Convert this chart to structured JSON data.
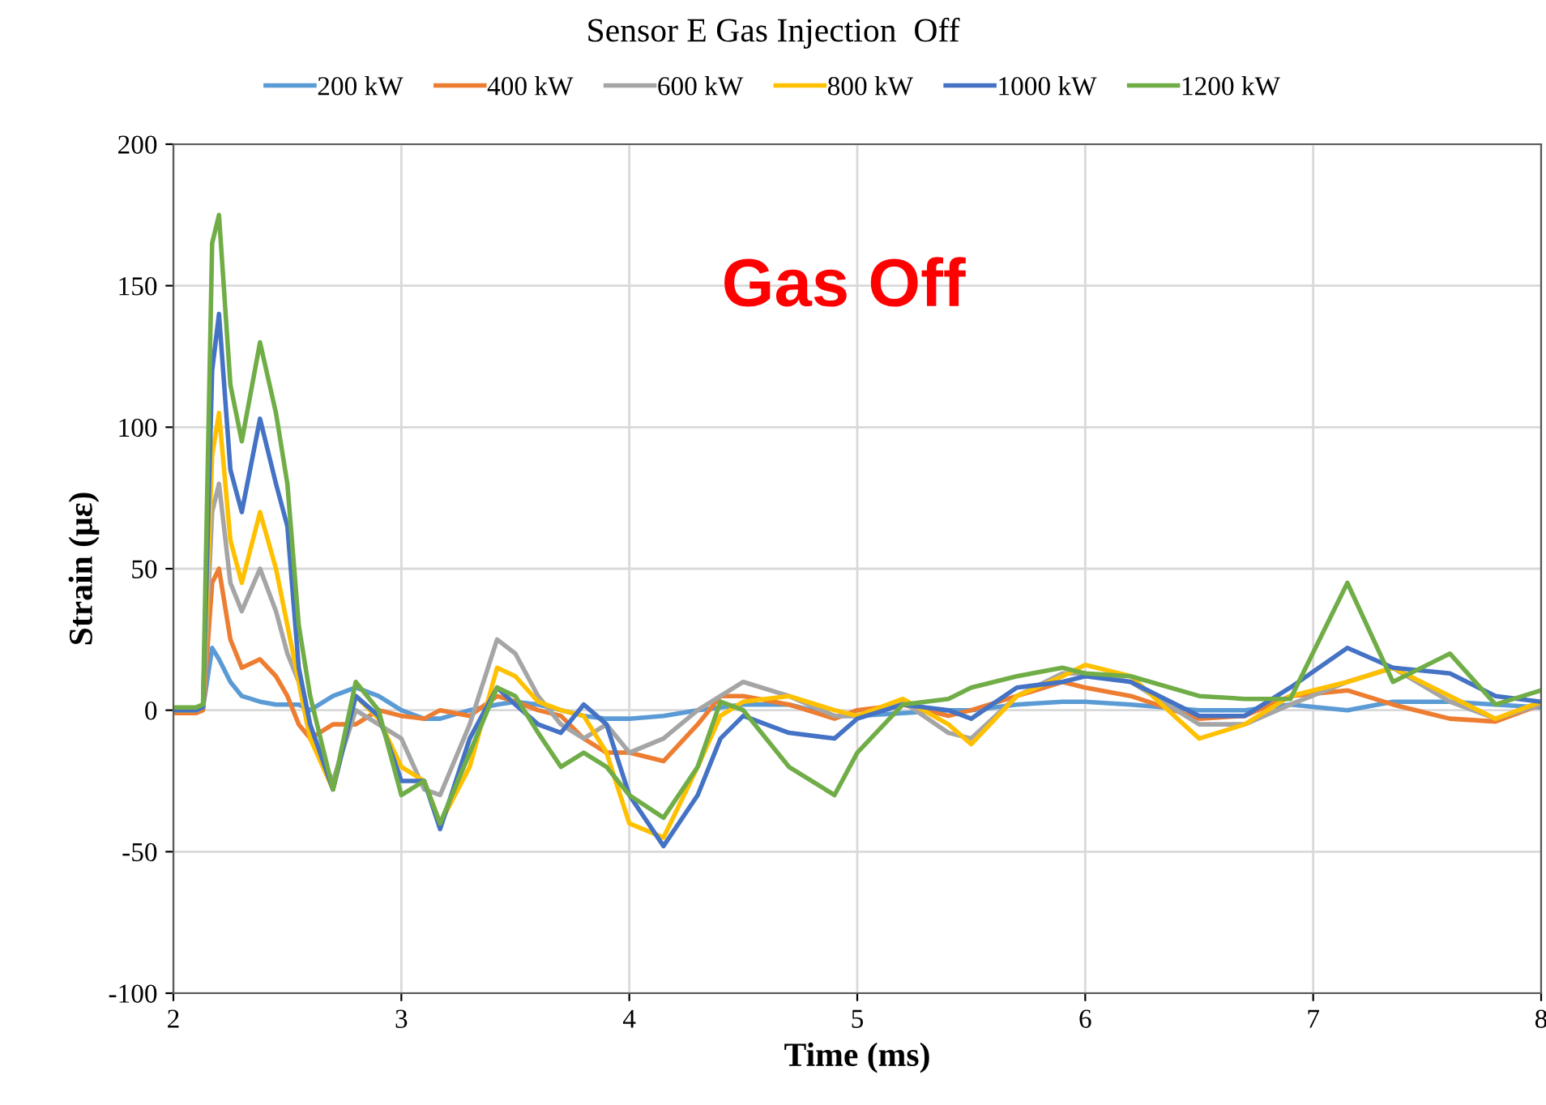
{
  "chart_data": {
    "type": "line",
    "title": "Sensor E Gas Injection  Off",
    "xlabel": "Time (ms)",
    "ylabel": "Strain (με)",
    "annotations": [
      "Gas Off"
    ],
    "x": [
      2.0,
      2.1,
      2.13,
      2.17,
      2.2,
      2.25,
      2.3,
      2.38,
      2.45,
      2.5,
      2.55,
      2.6,
      2.7,
      2.8,
      2.9,
      3.0,
      3.1,
      3.17,
      3.3,
      3.42,
      3.5,
      3.6,
      3.7,
      3.8,
      3.9,
      4.0,
      4.15,
      4.3,
      4.4,
      4.5,
      4.7,
      4.9,
      5.0,
      5.2,
      5.4,
      5.5,
      5.7,
      5.9,
      6.0,
      6.2,
      6.5,
      6.7,
      6.9,
      7.15,
      7.35,
      7.6,
      7.8,
      8.0
    ],
    "series": [
      {
        "name": "200 kW",
        "color": "#5b9bd5",
        "values": [
          0,
          0,
          1,
          22,
          18,
          10,
          5,
          3,
          2,
          2,
          2,
          0,
          5,
          8,
          5,
          0,
          -3,
          -3,
          0,
          2,
          3,
          2,
          0,
          -2,
          -3,
          -3,
          -2,
          0,
          1,
          2,
          2,
          -2,
          -2,
          -1,
          0,
          0,
          2,
          3,
          3,
          2,
          0,
          0,
          2,
          0,
          3,
          3,
          2,
          1
        ]
      },
      {
        "name": "400 kW",
        "color": "#ed7d31",
        "values": [
          -1,
          -1,
          0,
          45,
          50,
          25,
          15,
          18,
          12,
          5,
          -5,
          -10,
          -5,
          -5,
          0,
          -2,
          -3,
          0,
          -2,
          5,
          3,
          0,
          -2,
          -10,
          -15,
          -15,
          -18,
          -5,
          5,
          5,
          2,
          -3,
          0,
          2,
          -2,
          0,
          5,
          10,
          8,
          5,
          -3,
          -2,
          5,
          7,
          2,
          -3,
          -4,
          2
        ]
      },
      {
        "name": "600 kW",
        "color": "#a5a5a5",
        "values": [
          0,
          0,
          1,
          70,
          80,
          45,
          35,
          50,
          35,
          20,
          10,
          -10,
          -25,
          0,
          -5,
          -10,
          -28,
          -30,
          -5,
          25,
          20,
          5,
          -5,
          -10,
          -5,
          -15,
          -10,
          0,
          5,
          10,
          5,
          -2,
          -2,
          3,
          -8,
          -10,
          5,
          13,
          13,
          10,
          -5,
          -5,
          2,
          10,
          15,
          3,
          -3,
          2
        ]
      },
      {
        "name": "800 kW",
        "color": "#ffc000",
        "values": [
          0,
          0,
          1,
          90,
          105,
          60,
          45,
          70,
          50,
          30,
          10,
          -10,
          -28,
          5,
          -3,
          -20,
          -25,
          -40,
          -20,
          15,
          12,
          3,
          0,
          -2,
          -15,
          -40,
          -45,
          -20,
          -2,
          3,
          5,
          0,
          -2,
          4,
          -5,
          -12,
          5,
          12,
          16,
          12,
          -10,
          -5,
          5,
          10,
          15,
          5,
          -3,
          3
        ]
      },
      {
        "name": "1000 kW",
        "color": "#4472c4",
        "values": [
          0,
          0,
          1,
          120,
          140,
          85,
          70,
          103,
          80,
          65,
          15,
          -5,
          -28,
          5,
          -2,
          -25,
          -25,
          -42,
          -10,
          8,
          2,
          -5,
          -8,
          2,
          -5,
          -30,
          -48,
          -30,
          -10,
          -2,
          -8,
          -10,
          -3,
          2,
          0,
          -3,
          8,
          10,
          12,
          10,
          -2,
          -2,
          8,
          22,
          15,
          13,
          5,
          3
        ]
      },
      {
        "name": "1200 kW",
        "color": "#70ad47",
        "values": [
          1,
          1,
          2,
          165,
          175,
          115,
          95,
          130,
          105,
          80,
          30,
          5,
          -28,
          10,
          0,
          -30,
          -25,
          -40,
          -15,
          8,
          5,
          -8,
          -20,
          -15,
          -20,
          -30,
          -38,
          -20,
          3,
          0,
          -20,
          -30,
          -15,
          2,
          4,
          8,
          12,
          15,
          13,
          12,
          5,
          4,
          4,
          45,
          10,
          20,
          2,
          7
        ]
      }
    ],
    "xlim": [
      2,
      8
    ],
    "xticks": [
      2,
      3,
      4,
      5,
      6,
      7,
      8
    ],
    "ylim": [
      -100,
      200
    ],
    "yticks": [
      -100,
      -50,
      0,
      50,
      100,
      150,
      200
    ],
    "grid": true,
    "legend": "top",
    "line_style": "solid",
    "marker": "none"
  }
}
